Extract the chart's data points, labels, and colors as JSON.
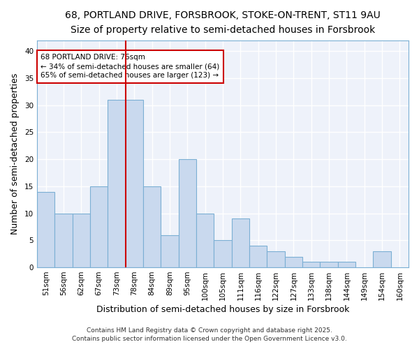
{
  "title": "68, PORTLAND DRIVE, FORSBROOK, STOKE-ON-TRENT, ST11 9AU",
  "subtitle": "Size of property relative to semi-detached houses in Forsbrook",
  "xlabel": "Distribution of semi-detached houses by size in Forsbrook",
  "ylabel": "Number of semi-detached properties",
  "categories": [
    "51sqm",
    "56sqm",
    "62sqm",
    "67sqm",
    "73sqm",
    "78sqm",
    "84sqm",
    "89sqm",
    "95sqm",
    "100sqm",
    "105sqm",
    "111sqm",
    "116sqm",
    "122sqm",
    "127sqm",
    "133sqm",
    "138sqm",
    "144sqm",
    "149sqm",
    "154sqm",
    "160sqm"
  ],
  "values": [
    14,
    10,
    10,
    15,
    31,
    31,
    15,
    6,
    20,
    10,
    5,
    9,
    4,
    3,
    2,
    1,
    1,
    1,
    0,
    3,
    0
  ],
  "bar_color": "#c9d9ee",
  "bar_edge_color": "#7bafd4",
  "background_color": "#ffffff",
  "plot_bg_color": "#eef2fa",
  "grid_color": "#ffffff",
  "red_line_x": 4.5,
  "annotation_text": "68 PORTLAND DRIVE: 76sqm\n← 34% of semi-detached houses are smaller (64)\n65% of semi-detached houses are larger (123) →",
  "annotation_box_color": "#ffffff",
  "annotation_box_edge": "#cc0000",
  "ylim": [
    0,
    42
  ],
  "yticks": [
    0,
    5,
    10,
    15,
    20,
    25,
    30,
    35,
    40
  ],
  "footer1": "Contains HM Land Registry data © Crown copyright and database right 2025.",
  "footer2": "Contains public sector information licensed under the Open Government Licence v3.0.",
  "title_fontsize": 10,
  "subtitle_fontsize": 9,
  "axis_label_fontsize": 9,
  "tick_fontsize": 7.5,
  "annotation_fontsize": 7.5,
  "footer_fontsize": 6.5
}
